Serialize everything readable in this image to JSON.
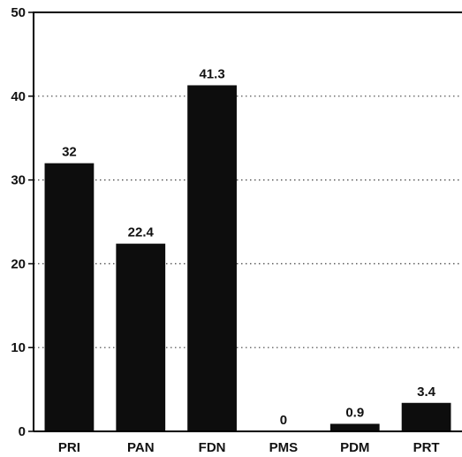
{
  "chart_data": {
    "type": "bar",
    "title": "",
    "xlabel": "",
    "ylabel": "",
    "categories": [
      "PRI",
      "PAN",
      "FDN",
      "PMS",
      "PDM",
      "PRT"
    ],
    "values": [
      32,
      22.4,
      41.3,
      0,
      0.9,
      3.4
    ],
    "data_labels": [
      "32",
      "22.4",
      "41.3",
      "0",
      "0.9",
      "3.4"
    ],
    "ylim": [
      0,
      50
    ],
    "yticks": [
      0,
      10,
      20,
      30,
      40,
      50
    ],
    "ytick_labels": [
      "0",
      "10",
      "20",
      "30",
      "40",
      "50"
    ],
    "grid": "horizontal dotted",
    "bar_color": "#0d0d0d"
  }
}
